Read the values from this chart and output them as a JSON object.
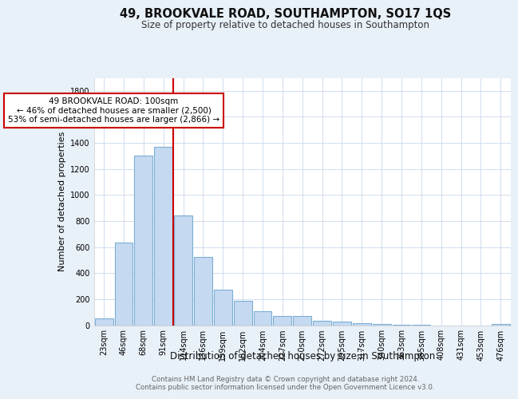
{
  "title": "49, BROOKVALE ROAD, SOUTHAMPTON, SO17 1QS",
  "subtitle": "Size of property relative to detached houses in Southampton",
  "xlabel": "Distribution of detached houses by size in Southampton",
  "ylabel": "Number of detached properties",
  "categories": [
    "23sqm",
    "46sqm",
    "68sqm",
    "91sqm",
    "114sqm",
    "136sqm",
    "159sqm",
    "182sqm",
    "204sqm",
    "227sqm",
    "250sqm",
    "272sqm",
    "295sqm",
    "317sqm",
    "340sqm",
    "363sqm",
    "385sqm",
    "408sqm",
    "431sqm",
    "453sqm",
    "476sqm"
  ],
  "values": [
    55,
    635,
    1305,
    1370,
    845,
    525,
    275,
    185,
    110,
    70,
    70,
    35,
    25,
    15,
    10,
    5,
    5,
    0,
    0,
    0,
    12
  ],
  "bar_color": "#c5d9f0",
  "bar_edge_color": "#7bafd4",
  "vline_x": 3.5,
  "vline_color": "#cc0000",
  "annotation_lines": [
    "49 BROOKVALE ROAD: 100sqm",
    "← 46% of detached houses are smaller (2,500)",
    "53% of semi-detached houses are larger (2,866) →"
  ],
  "annotation_box_bg": "#ffffff",
  "annotation_box_edge": "#cc0000",
  "ylim": [
    0,
    1900
  ],
  "yticks": [
    0,
    200,
    400,
    600,
    800,
    1000,
    1200,
    1400,
    1600,
    1800
  ],
  "grid_color": "#c8d8eb",
  "plot_bg": "#ffffff",
  "fig_bg": "#e8f0f8",
  "footer_line1": "Contains HM Land Registry data © Crown copyright and database right 2024.",
  "footer_line2": "Contains public sector information licensed under the Open Government Licence v3.0.",
  "title_fontsize": 10.5,
  "subtitle_fontsize": 8.5,
  "ylabel_fontsize": 8,
  "xlabel_fontsize": 8.5,
  "tick_fontsize": 7,
  "annotation_fontsize": 7.5,
  "footer_fontsize": 6.2
}
